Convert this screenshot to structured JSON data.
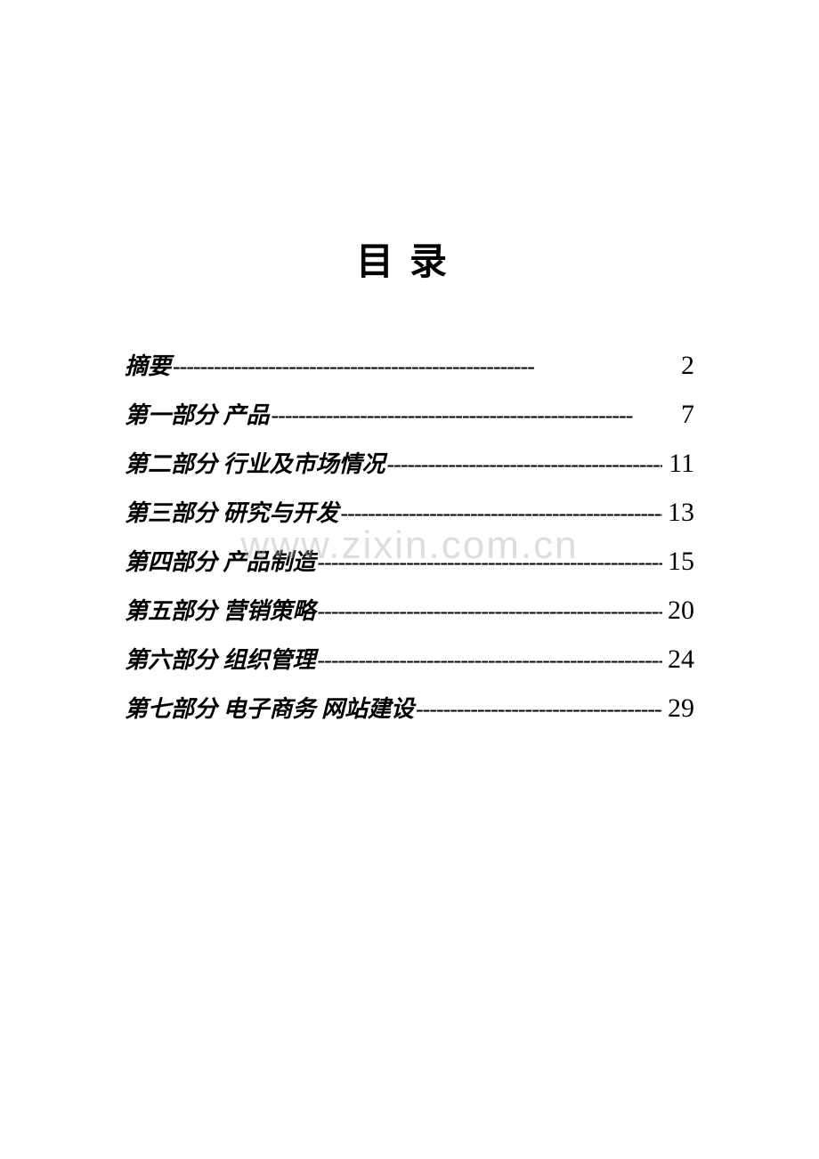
{
  "title": "目录",
  "watermark": "www.zixin.com.cn",
  "colors": {
    "background": "#ffffff",
    "text": "#000000",
    "watermark": "rgba(180, 180, 180, 0.45)"
  },
  "typography": {
    "title_fontsize": 42,
    "entry_fontsize": 26,
    "page_fontsize": 30,
    "title_font": "KaiTi",
    "body_font": "KaiTi"
  },
  "toc": {
    "entries": [
      {
        "label": "摘要",
        "page": "2"
      },
      {
        "label": "第一部分  产品",
        "page": "7"
      },
      {
        "label": "第二部分  行业及市场情况",
        "page": "11"
      },
      {
        "label": "第三部分  研究与开发",
        "page": "13"
      },
      {
        "label": "第四部分  产品制造",
        "page": "15"
      },
      {
        "label": "第五部分  营销策略",
        "page": "20"
      },
      {
        "label": "第六部分  组织管理",
        "page": "24"
      },
      {
        "label": "第七部分   电子商务  网站建设",
        "page": "29"
      }
    ]
  }
}
